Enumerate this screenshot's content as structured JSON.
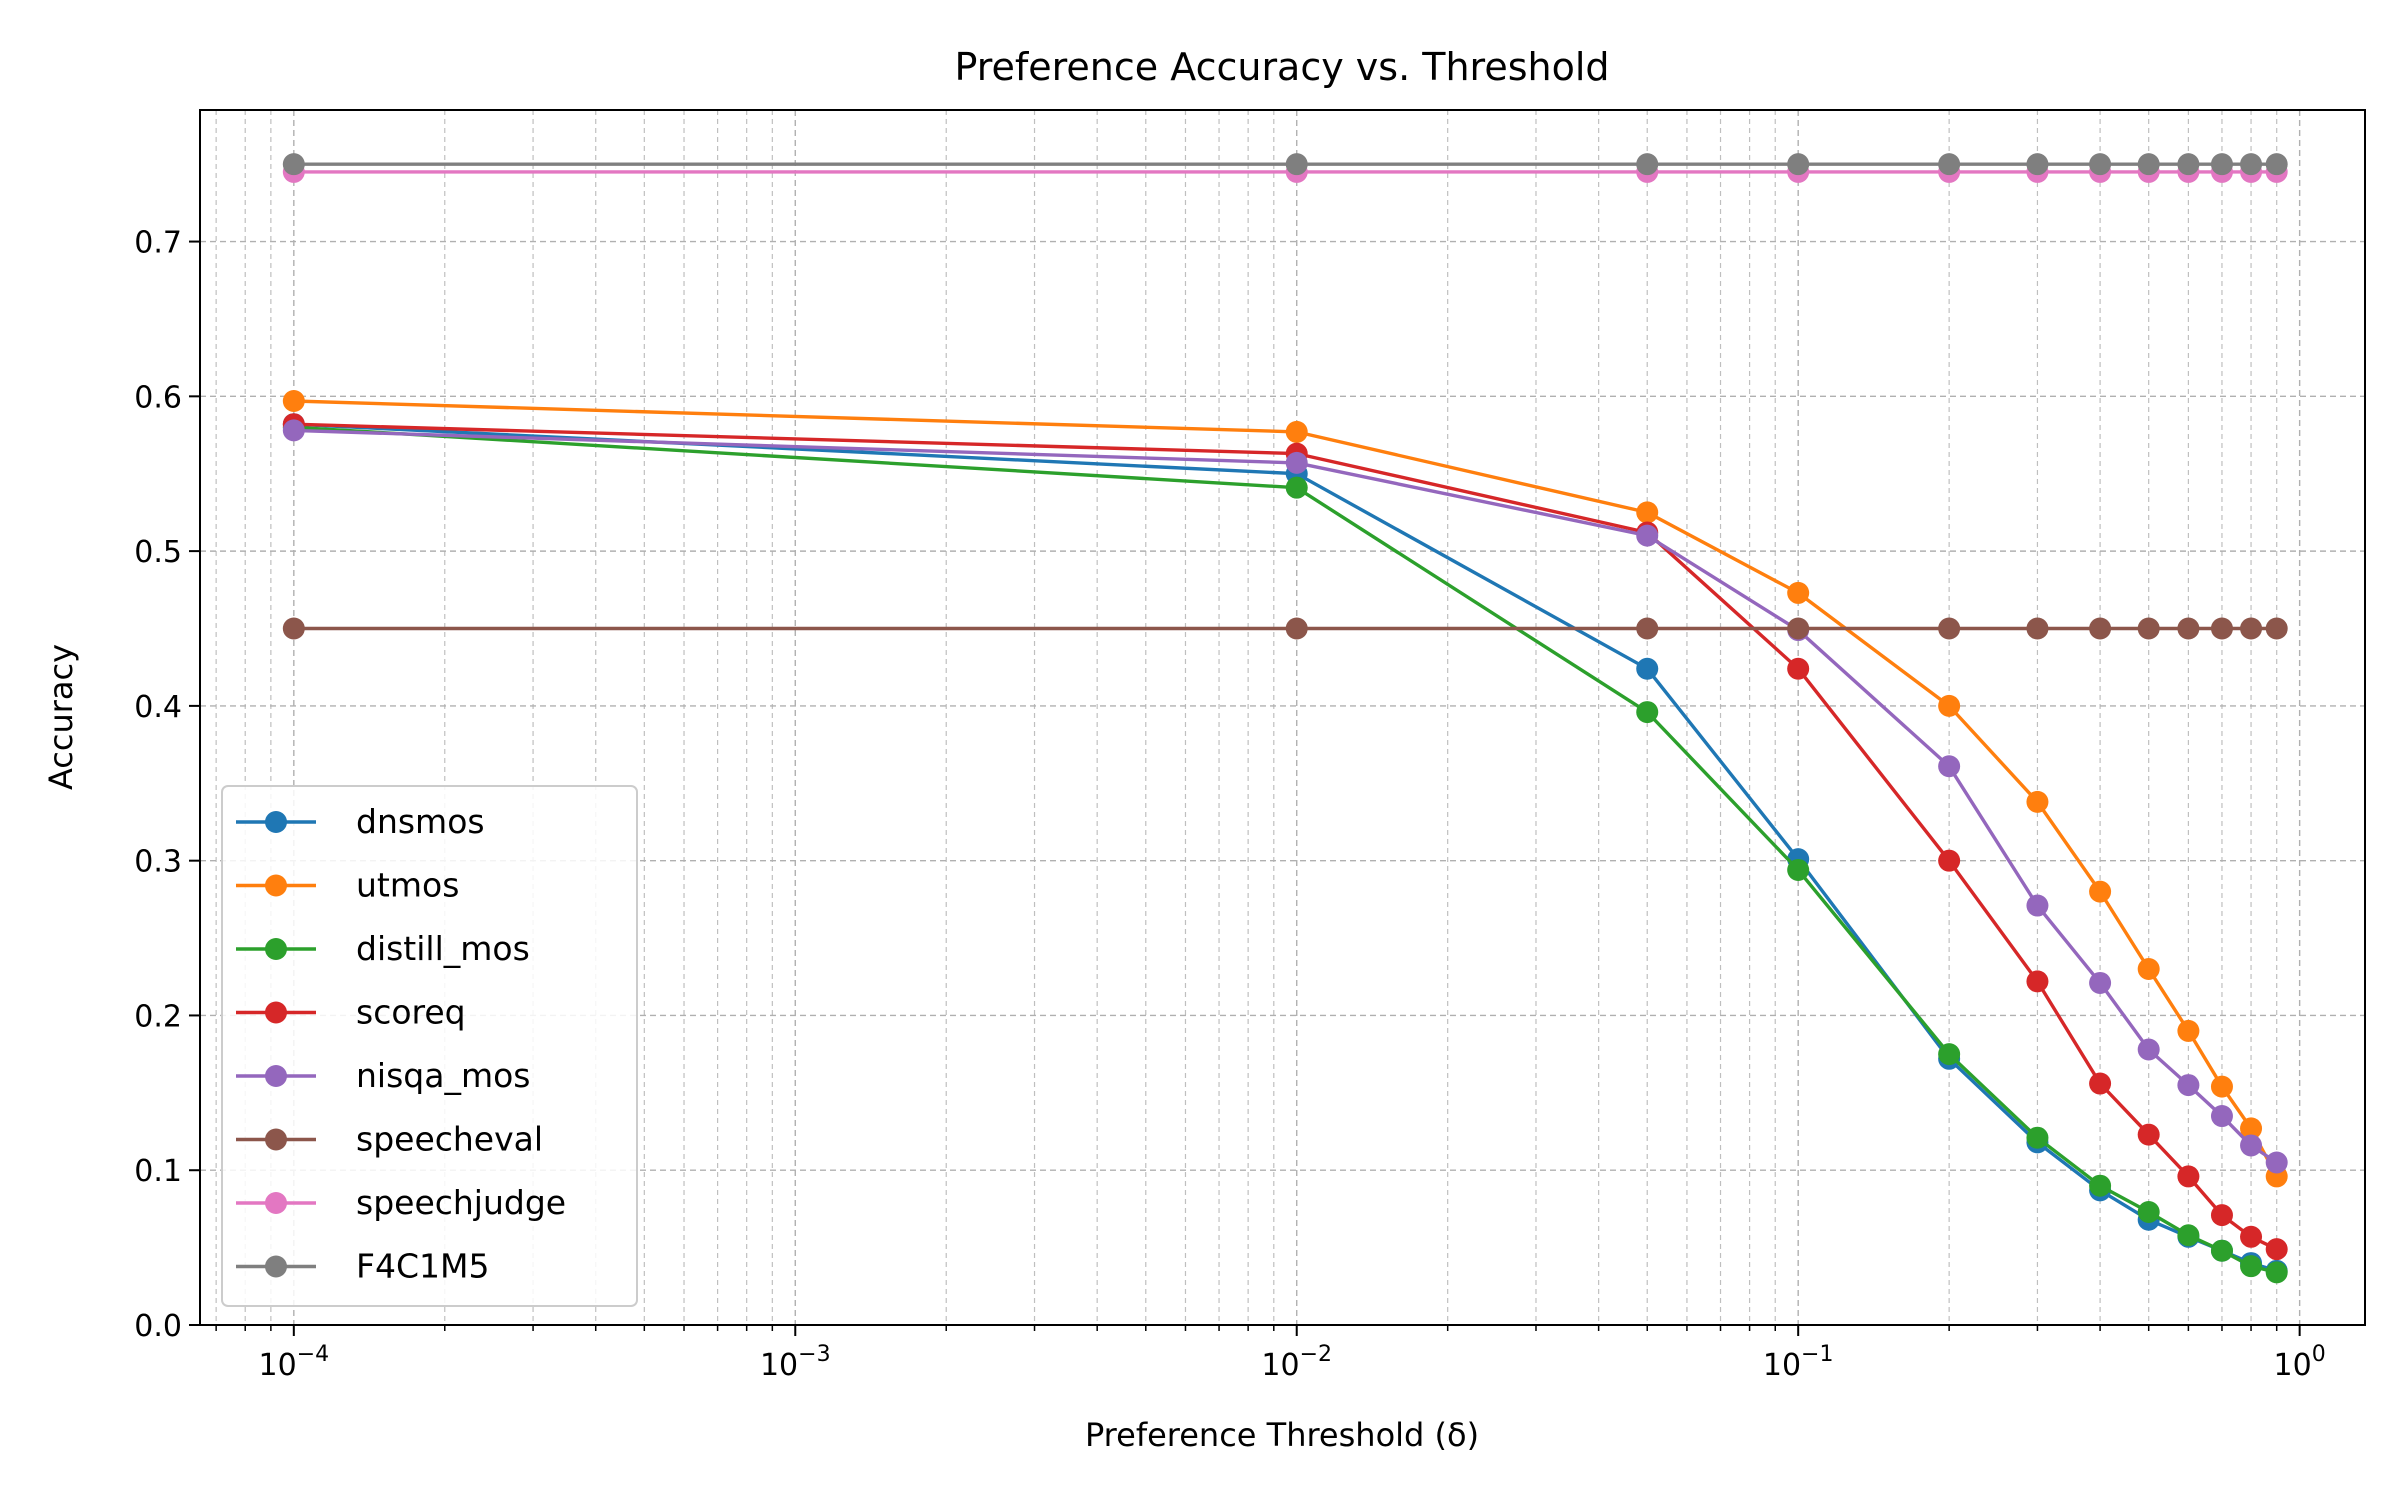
{
  "chart_data": {
    "type": "line",
    "title": "Preference Accuracy vs. Threshold",
    "xlabel": "Preference Threshold (δ)",
    "ylabel": "Accuracy",
    "x_scale": "log",
    "xlim": [
      6.5e-05,
      1.35
    ],
    "ylim": [
      0.0,
      0.785
    ],
    "x": [
      0.0001,
      0.01,
      0.05,
      0.1,
      0.2,
      0.3,
      0.4,
      0.5,
      0.6,
      0.7,
      0.8,
      0.9
    ],
    "x_ticks": [
      {
        "value": 0.0001,
        "base": "10",
        "exp": "−4"
      },
      {
        "value": 0.001,
        "base": "10",
        "exp": "−3"
      },
      {
        "value": 0.01,
        "base": "10",
        "exp": "−2"
      },
      {
        "value": 0.1,
        "base": "10",
        "exp": "−1"
      },
      {
        "value": 1,
        "base": "10",
        "exp": "0"
      }
    ],
    "y_ticks": [
      "0.0",
      "0.1",
      "0.2",
      "0.3",
      "0.4",
      "0.5",
      "0.6",
      "0.7"
    ],
    "grid": true,
    "legend_position": "lower-left",
    "series": [
      {
        "name": "dnsmos",
        "color": "#1f77b4",
        "values": [
          0.582,
          0.55,
          0.424,
          0.301,
          0.172,
          0.118,
          0.087,
          0.068,
          0.057,
          0.048,
          0.04,
          0.035
        ]
      },
      {
        "name": "utmos",
        "color": "#ff7f0e",
        "values": [
          0.597,
          0.577,
          0.525,
          0.473,
          0.4,
          0.338,
          0.28,
          0.23,
          0.19,
          0.154,
          0.127,
          0.096
        ]
      },
      {
        "name": "distill_mos",
        "color": "#2ca02c",
        "values": [
          0.58,
          0.541,
          0.396,
          0.294,
          0.175,
          0.121,
          0.09,
          0.073,
          0.058,
          0.048,
          0.038,
          0.034
        ]
      },
      {
        "name": "scoreq",
        "color": "#d62728",
        "values": [
          0.582,
          0.563,
          0.512,
          0.424,
          0.3,
          0.222,
          0.156,
          0.123,
          0.096,
          0.071,
          0.057,
          0.049
        ]
      },
      {
        "name": "nisqa_mos",
        "color": "#9467bd",
        "values": [
          0.578,
          0.557,
          0.51,
          0.449,
          0.361,
          0.271,
          0.221,
          0.178,
          0.155,
          0.135,
          0.116,
          0.105
        ]
      },
      {
        "name": "speecheval",
        "color": "#8c564b",
        "values": [
          0.45,
          0.45,
          0.45,
          0.45,
          0.45,
          0.45,
          0.45,
          0.45,
          0.45,
          0.45,
          0.45,
          0.45
        ]
      },
      {
        "name": "speechjudge",
        "color": "#e377c2",
        "values": [
          0.745,
          0.745,
          0.745,
          0.745,
          0.745,
          0.745,
          0.745,
          0.745,
          0.745,
          0.745,
          0.745,
          0.745
        ]
      },
      {
        "name": "F4C1M5",
        "color": "#7f7f7f",
        "values": [
          0.75,
          0.75,
          0.75,
          0.75,
          0.75,
          0.75,
          0.75,
          0.75,
          0.75,
          0.75,
          0.75,
          0.75
        ]
      }
    ]
  }
}
